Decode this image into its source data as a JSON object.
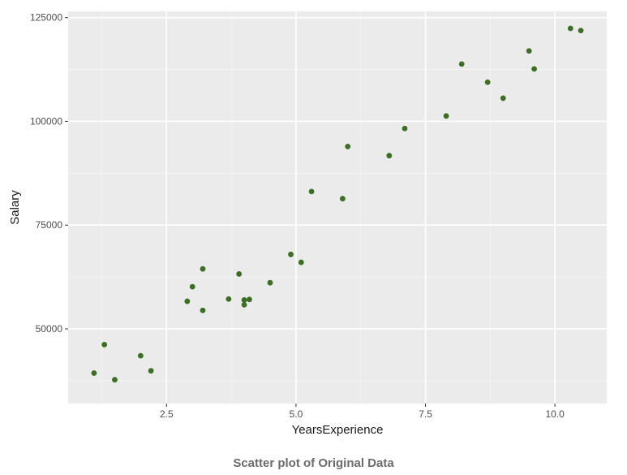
{
  "caption": "Scatter plot of Original Data",
  "chart_data": {
    "type": "scatter",
    "xlabel": "YearsExperience",
    "ylabel": "Salary",
    "xlim": [
      0.6,
      11.0
    ],
    "ylim": [
      32000,
      126500
    ],
    "x_ticks": [
      2.5,
      5.0,
      7.5,
      10.0
    ],
    "x_tick_labels": [
      "2.5",
      "5.0",
      "7.5",
      "10.0"
    ],
    "y_ticks": [
      50000,
      75000,
      100000,
      125000
    ],
    "y_tick_labels": [
      "50000",
      "75000",
      "100000",
      "125000"
    ],
    "grid": true,
    "panel_background": "#ebebeb",
    "point_color": "#3d6e26",
    "points": [
      {
        "x": 1.1,
        "y": 39343
      },
      {
        "x": 1.3,
        "y": 46205
      },
      {
        "x": 1.5,
        "y": 37731
      },
      {
        "x": 2.0,
        "y": 43525
      },
      {
        "x": 2.2,
        "y": 39891
      },
      {
        "x": 2.9,
        "y": 56642
      },
      {
        "x": 3.0,
        "y": 60150
      },
      {
        "x": 3.2,
        "y": 54445
      },
      {
        "x": 3.2,
        "y": 64445
      },
      {
        "x": 3.7,
        "y": 57189
      },
      {
        "x": 3.9,
        "y": 63218
      },
      {
        "x": 4.0,
        "y": 55794
      },
      {
        "x": 4.0,
        "y": 56957
      },
      {
        "x": 4.1,
        "y": 57081
      },
      {
        "x": 4.5,
        "y": 61111
      },
      {
        "x": 4.9,
        "y": 67938
      },
      {
        "x": 5.1,
        "y": 66029
      },
      {
        "x": 5.3,
        "y": 83088
      },
      {
        "x": 5.9,
        "y": 81363
      },
      {
        "x": 6.0,
        "y": 93940
      },
      {
        "x": 6.8,
        "y": 91738
      },
      {
        "x": 7.1,
        "y": 98273
      },
      {
        "x": 7.9,
        "y": 101302
      },
      {
        "x": 8.2,
        "y": 113812
      },
      {
        "x": 8.7,
        "y": 109431
      },
      {
        "x": 9.0,
        "y": 105582
      },
      {
        "x": 9.5,
        "y": 116969
      },
      {
        "x": 9.6,
        "y": 112635
      },
      {
        "x": 10.3,
        "y": 122391
      },
      {
        "x": 10.5,
        "y": 121872
      }
    ]
  }
}
